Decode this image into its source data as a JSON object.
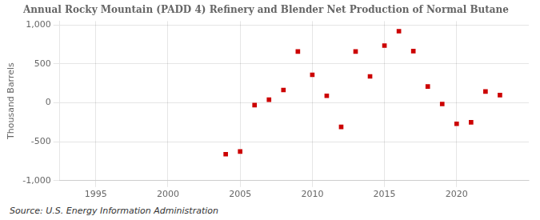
{
  "chart_data": {
    "type": "scatter",
    "title": "Annual Rocky Mountain (PADD 4) Refinery and Blender Net Production of Normal Butane",
    "ylabel": "Thousand Barrels",
    "annotations": [
      "Source: U.S. Energy Information Administration"
    ],
    "x": [
      2004,
      2005,
      2006,
      2007,
      2008,
      2009,
      2010,
      2011,
      2012,
      2013,
      2014,
      2015,
      2016,
      2017,
      2018,
      2019,
      2020,
      2021,
      2022,
      2023
    ],
    "values": [
      -660,
      -625,
      -30,
      40,
      165,
      660,
      360,
      90,
      -310,
      660,
      340,
      735,
      920,
      665,
      210,
      -15,
      -270,
      -250,
      145,
      100
    ],
    "color": "#cc0000",
    "marker": "square",
    "xlim": [
      1992.5,
      2025
    ],
    "ylim": [
      -1000,
      1050
    ],
    "xticks": [
      1995,
      2000,
      2005,
      2010,
      2015,
      2020
    ],
    "yticks": [
      {
        "value": -1000,
        "label": "-1,000"
      },
      -500,
      0,
      500,
      {
        "value": 1000,
        "label": "1,000"
      }
    ],
    "grid": true
  }
}
